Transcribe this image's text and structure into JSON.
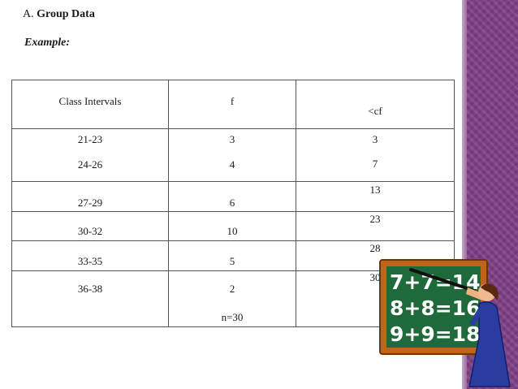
{
  "heading": {
    "letter": "A.",
    "title": "Group Data"
  },
  "example_label": "Example:",
  "table": {
    "headers": {
      "class_intervals": "Class Intervals",
      "f": "f",
      "cf": "<cf"
    },
    "rows": [
      {
        "interval": "21-23",
        "f": "3",
        "cf": "3"
      },
      {
        "interval": "24-26",
        "f": "4",
        "cf": "7"
      },
      {
        "interval": "27-29",
        "f": "6",
        "cf": "13"
      },
      {
        "interval": "30-32",
        "f": "10",
        "cf": "23"
      },
      {
        "interval": "33-35",
        "f": "5",
        "cf": "28"
      },
      {
        "interval": "36-38",
        "f": "2",
        "cf": "30"
      }
    ],
    "total": "n=30"
  },
  "clipart": {
    "board_lines": [
      "7+7=14",
      "8+8=16",
      "9+9=18"
    ],
    "colors": {
      "board": "#1f6a3a",
      "frame": "#c0641a",
      "sidebar": "#7e3f84",
      "teacher_dress": "#2a3c9e"
    }
  }
}
